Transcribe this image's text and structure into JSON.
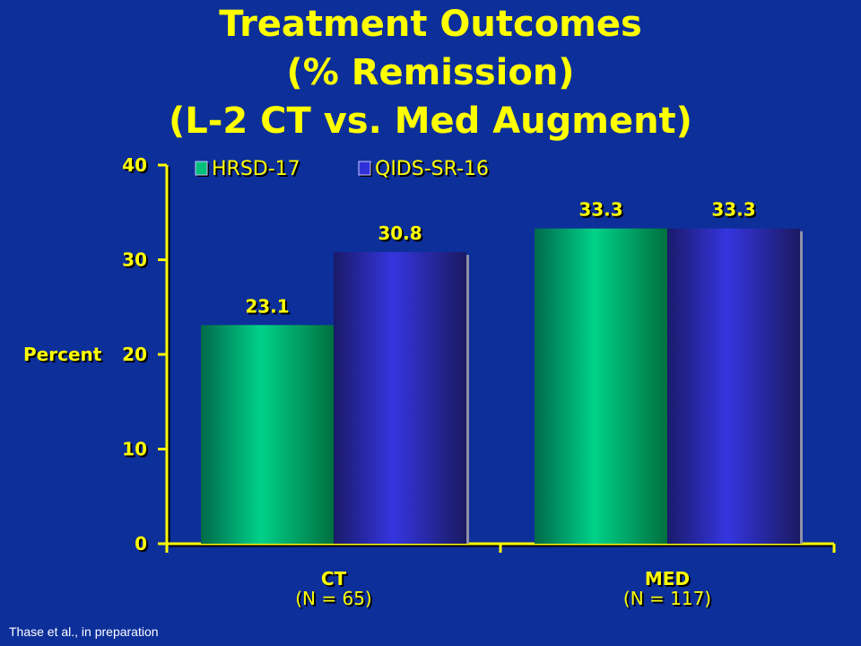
{
  "title": {
    "line1": "Treatment Outcomes",
    "line2": "(% Remission)",
    "line3": "(L-2 CT vs. Med Augment)"
  },
  "citation": "Thase et al., in preparation",
  "colors": {
    "background": "#0d2f9a",
    "title": "#ffff00",
    "axis": "#ffff00",
    "series_hrsd": "#00c07a",
    "series_qids": "#3030d8"
  },
  "chart_data": {
    "type": "bar",
    "categories": [
      "CT",
      "MED"
    ],
    "category_sublabels": [
      "(N = 65)",
      "(N = 117)"
    ],
    "series": [
      {
        "name": "HRSD-17",
        "values": [
          23.1,
          33.3
        ],
        "labels": [
          "23.1",
          "33.3"
        ]
      },
      {
        "name": "QIDS-SR-16",
        "values": [
          30.8,
          33.3
        ],
        "labels": [
          "30.8",
          "33.3"
        ]
      }
    ],
    "ylabel": "Percent",
    "ylim": [
      0,
      40
    ],
    "yticks": [
      0,
      10,
      20,
      30,
      40
    ],
    "grid": false,
    "legend": "top-left"
  }
}
